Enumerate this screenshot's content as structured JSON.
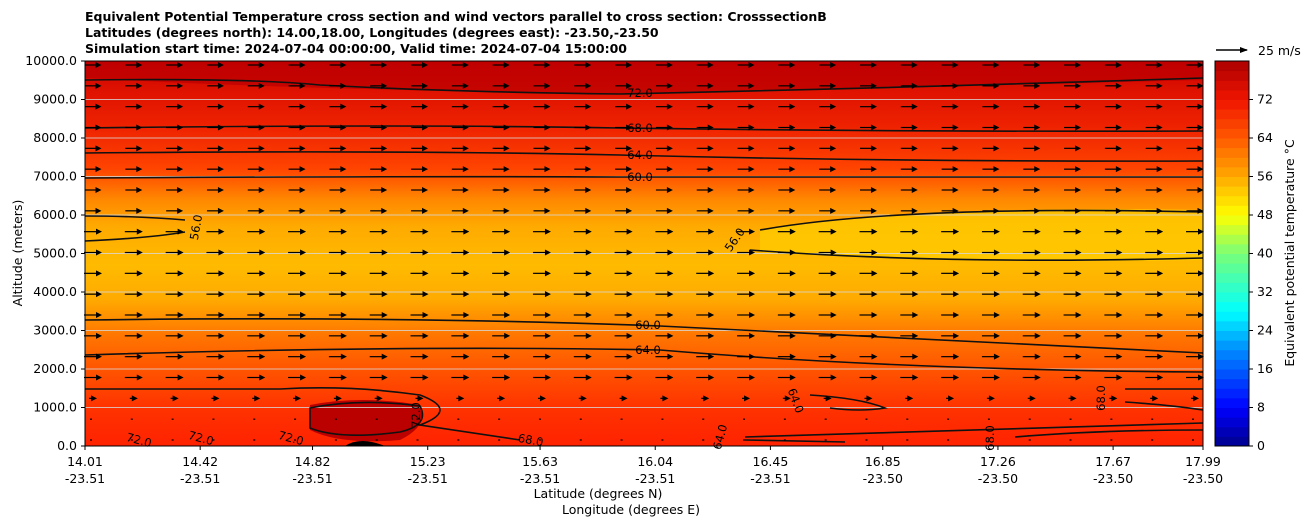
{
  "chart_data": {
    "type": "heatmap",
    "title_lines": [
      "Equivalent Potential Temperature cross section and wind vectors parallel to cross section: CrosssectionB",
      "Latitudes (degrees north): 14.00,18.00, Longitudes (degrees east): -23.50,-23.50",
      "Simulation start time: 2024-07-04 00:00:00, Valid time: 2024-07-04 15:00:00"
    ],
    "xlabel": "Latitude (degrees N)",
    "xlabel2": "Longitude (degrees E)",
    "ylabel": "Altitude (meters)",
    "ylim": [
      0,
      10000
    ],
    "yticks": [
      "0.0",
      "1000.0",
      "2000.0",
      "3000.0",
      "4000.0",
      "5000.0",
      "6000.0",
      "7000.0",
      "8000.0",
      "9000.0",
      "10000.0"
    ],
    "xticks": [
      {
        "lat": "14.01",
        "lon": "-23.51"
      },
      {
        "lat": "14.42",
        "lon": "-23.51"
      },
      {
        "lat": "14.82",
        "lon": "-23.51"
      },
      {
        "lat": "15.23",
        "lon": "-23.51"
      },
      {
        "lat": "15.63",
        "lon": "-23.51"
      },
      {
        "lat": "16.04",
        "lon": "-23.51"
      },
      {
        "lat": "16.45",
        "lon": "-23.51"
      },
      {
        "lat": "16.85",
        "lon": "-23.50"
      },
      {
        "lat": "17.26",
        "lon": "-23.50"
      },
      {
        "lat": "17.67",
        "lon": "-23.50"
      },
      {
        "lat": "17.99",
        "lon": "-23.50"
      }
    ],
    "colorbar": {
      "label": "Equivalent potential temperature $^\\circ$C",
      "ticks": [
        "0",
        "8",
        "16",
        "24",
        "32",
        "40",
        "48",
        "56",
        "64",
        "72"
      ],
      "range": [
        0,
        80
      ],
      "colormap": "jet-to-hot"
    },
    "quiver_key": "25 m/s",
    "grid": true,
    "contour_labels": [
      "72.0",
      "68.0",
      "64.0",
      "60.0",
      "56.0",
      "56.0",
      "60.0",
      "64.0",
      "68.0",
      "72.0",
      "72.0",
      "72.0",
      "72.0",
      "64.0",
      "68.0",
      "64.0",
      "68.0"
    ],
    "layers_degC_by_altitude_m": [
      {
        "alt": 0,
        "value": 66
      },
      {
        "alt": 1000,
        "value": 65
      },
      {
        "alt": 2000,
        "value": 63
      },
      {
        "alt": 3000,
        "value": 59
      },
      {
        "alt": 4000,
        "value": 57
      },
      {
        "alt": 5000,
        "value": 56
      },
      {
        "alt": 6000,
        "value": 57
      },
      {
        "alt": 7000,
        "value": 60
      },
      {
        "alt": 8000,
        "value": 66
      },
      {
        "alt": 9000,
        "value": 71
      },
      {
        "alt": 10000,
        "value": 76
      }
    ]
  }
}
